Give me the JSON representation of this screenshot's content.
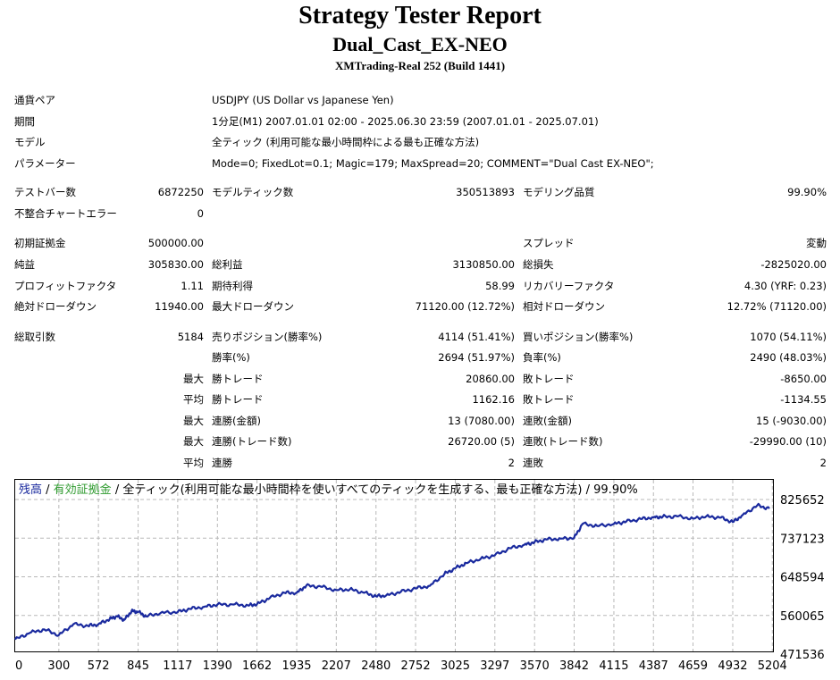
{
  "report": {
    "title": "Strategy Tester Report",
    "subtitle": "Dual_Cast_EX-NEO",
    "server": "XMTrading-Real 252 (Build 1441)"
  },
  "info": [
    {
      "label": "通貨ペア",
      "value": "USDJPY (US Dollar vs Japanese Yen)"
    },
    {
      "label": "期間",
      "value": "1分足(M1) 2007.01.01 02:00 - 2025.06.30 23:59 (2007.01.01 - 2025.07.01)"
    },
    {
      "label": "モデル",
      "value": "全ティック (利用可能な最小時間枠による最も正確な方法)"
    },
    {
      "label": "パラメーター",
      "value": "Mode=0; FixedLot=0.1; Magic=179; MaxSpread=20; COMMENT=\"Dual Cast EX-NEO\";"
    }
  ],
  "stats": {
    "test_bars": {
      "label": "テストバー数",
      "value": "6872250"
    },
    "model_ticks": {
      "label": "モデルティック数",
      "value": "350513893"
    },
    "modeling_quality": {
      "label": "モデリング品質",
      "value": "99.90%"
    },
    "mismatch_errors": {
      "label": "不整合チャートエラー",
      "value": "0"
    },
    "initial_deposit": {
      "label": "初期証拠金",
      "value": "500000.00"
    },
    "spread": {
      "label": "スプレッド",
      "value": "変動"
    },
    "net_profit": {
      "label": "純益",
      "value": "305830.00"
    },
    "gross_profit": {
      "label": "総利益",
      "value": "3130850.00"
    },
    "gross_loss": {
      "label": "総損失",
      "value": "-2825020.00"
    },
    "profit_factor": {
      "label": "プロフィットファクタ",
      "value": "1.11"
    },
    "expected_payoff": {
      "label": "期待利得",
      "value": "58.99"
    },
    "recovery_factor": {
      "label": "リカバリーファクタ",
      "value": "4.30 (YRF: 0.23)"
    },
    "abs_drawdown": {
      "label": "絶対ドローダウン",
      "value": "11940.00"
    },
    "max_drawdown": {
      "label": "最大ドローダウン",
      "value": "71120.00 (12.72%)"
    },
    "rel_drawdown": {
      "label": "相対ドローダウン",
      "value": "12.72% (71120.00)"
    },
    "total_trades": {
      "label": "総取引数",
      "value": "5184"
    },
    "short_positions": {
      "label": "売りポジション(勝率%)",
      "value": "4114 (51.41%)"
    },
    "long_positions": {
      "label": "買いポジション(勝率%)",
      "value": "1070 (54.11%)"
    },
    "win_rate": {
      "label": "勝率(%)",
      "value": "2694 (51.97%)"
    },
    "loss_rate": {
      "label": "負率(%)",
      "value": "2490 (48.03%)"
    },
    "largest_win": {
      "prefix": "最大",
      "label": "勝トレード",
      "value": "20860.00"
    },
    "largest_loss": {
      "label": "敗トレード",
      "value": "-8650.00"
    },
    "average_win": {
      "prefix": "平均",
      "label": "勝トレード",
      "value": "1162.16"
    },
    "average_loss": {
      "label": "敗トレード",
      "value": "-1134.55"
    },
    "max_consec_wins_amt": {
      "prefix": "最大",
      "label": "連勝(金額)",
      "value": "13 (7080.00)"
    },
    "max_consec_losses_amt": {
      "label": "連敗(金額)",
      "value": "15 (-9030.00)"
    },
    "max_consec_profit": {
      "prefix": "最大",
      "label": "連勝(トレード数)",
      "value": "26720.00 (5)"
    },
    "max_consec_loss": {
      "label": "連敗(トレード数)",
      "value": "-29990.00 (10)"
    },
    "avg_consec_wins": {
      "prefix": "平均",
      "label": "連勝",
      "value": "2"
    },
    "avg_consec_losses": {
      "label": "連敗",
      "value": "2"
    }
  },
  "legend": {
    "balance": "残高",
    "sep1": " / ",
    "equity": "有効証拠金",
    "sep2": " / ",
    "model": "全ティック(利用可能な最小時間枠を使いすべてのティックを生成する、最も正確な方法) / 99.90%",
    "balance_color": "#1a2a9e",
    "equity_color": "#2e9a2e"
  },
  "chart_data": {
    "type": "line",
    "title": "",
    "xlabel": "",
    "ylabel": "",
    "x_ticks": [
      "0",
      "300",
      "572",
      "845",
      "1117",
      "1390",
      "1662",
      "1935",
      "2207",
      "2480",
      "2752",
      "3025",
      "3297",
      "3570",
      "3842",
      "4115",
      "4387",
      "4659",
      "4932",
      "5204"
    ],
    "y_ticks": [
      "825652",
      "737123",
      "648594",
      "560065",
      "471536"
    ],
    "xlim": [
      0,
      5184
    ],
    "ylim": [
      471536,
      825652
    ],
    "grid": true,
    "series": [
      {
        "color": "#1a2a9e",
        "x": [
          0,
          100,
          200,
          300,
          400,
          500,
          572,
          650,
          700,
          750,
          800,
          845,
          900,
          1000,
          1117,
          1200,
          1300,
          1390,
          1500,
          1600,
          1662,
          1750,
          1850,
          1935,
          2000,
          2100,
          2207,
          2300,
          2400,
          2480,
          2550,
          2650,
          2752,
          2850,
          2950,
          3025,
          3100,
          3200,
          3297,
          3400,
          3500,
          3570,
          3650,
          3750,
          3842,
          3900,
          4000,
          4115,
          4200,
          4300,
          4387,
          4450,
          4550,
          4659,
          4750,
          4850,
          4932,
          5000,
          5100,
          5184
        ],
        "values": [
          505000,
          520000,
          528000,
          515000,
          540000,
          536000,
          540000,
          552000,
          558000,
          550000,
          570000,
          568000,
          558000,
          566000,
          568000,
          575000,
          580000,
          585000,
          585000,
          583000,
          586000,
          600000,
          612000,
          612000,
          628000,
          626000,
          618000,
          620000,
          612000,
          604000,
          606000,
          614000,
          622000,
          628000,
          655000,
          668000,
          680000,
          690000,
          698000,
          714000,
          722000,
          728000,
          734000,
          736000,
          738000,
          770000,
          765000,
          770000,
          775000,
          781000,
          785000,
          786000,
          787000,
          782000,
          787000,
          784000,
          774000,
          790000,
          812000,
          805000
        ]
      }
    ]
  }
}
